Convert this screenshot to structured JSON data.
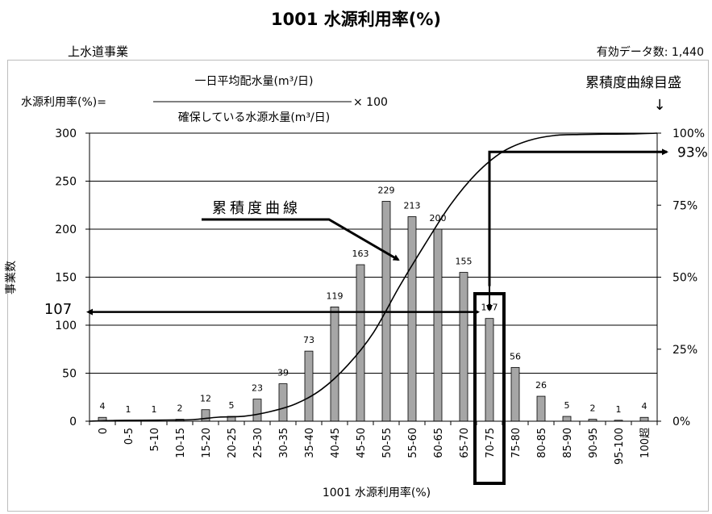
{
  "header": {
    "title": "1001 水源利用率(%)",
    "business": "上水道事業",
    "data_count": "有効データ数: 1,440"
  },
  "formula": {
    "lhs": "水源利用率(%)=",
    "numerator": "一日平均配水量(m³/日)",
    "denominator": "確保している水源水量(m³/日)",
    "multiplier": "× 100"
  },
  "annotations": {
    "cumulative_scale_label": "累積度曲線目盛",
    "cumulative_scale_arrow": "↓",
    "cumulative_curve_label": "累積度曲線",
    "marker_107": "107",
    "marker_93": "93%"
  },
  "colors": {
    "bar_fill": "#a6a6a6",
    "bar_stroke": "#000000",
    "axis": "#000000",
    "gridline": "#000000"
  },
  "chart_data": {
    "type": "bar",
    "title": "1001 水源利用率(%)",
    "xlabel": "1001 水源利用率(%)",
    "ylabel": "事業数",
    "ylim": [
      0,
      300
    ],
    "yticks": [
      "0",
      "50",
      "100",
      "150",
      "200",
      "250",
      "300"
    ],
    "y2ticks": [
      "0%",
      "25%",
      "50%",
      "75%",
      "100%"
    ],
    "grid": "horizontal",
    "categories": [
      "0",
      "0-5",
      "5-10",
      "10-15",
      "15-20",
      "20-25",
      "25-30",
      "30-35",
      "35-40",
      "40-45",
      "45-50",
      "50-55",
      "55-60",
      "60-65",
      "65-70",
      "70-75",
      "75-80",
      "80-85",
      "85-90",
      "90-95",
      "95-100",
      "100超"
    ],
    "values": [
      4,
      1,
      1,
      2,
      12,
      5,
      23,
      39,
      73,
      119,
      163,
      229,
      213,
      200,
      155,
      107,
      56,
      26,
      5,
      2,
      1,
      4
    ],
    "cumulative_percent": [
      0.28,
      0.35,
      0.42,
      0.56,
      1.39,
      1.74,
      3.33,
      6.04,
      11.11,
      19.38,
      30.69,
      46.6,
      61.39,
      75.28,
      86.04,
      93.47,
      97.36,
      99.17,
      99.51,
      99.65,
      99.72,
      100
    ],
    "highlight_category": "70-75"
  }
}
